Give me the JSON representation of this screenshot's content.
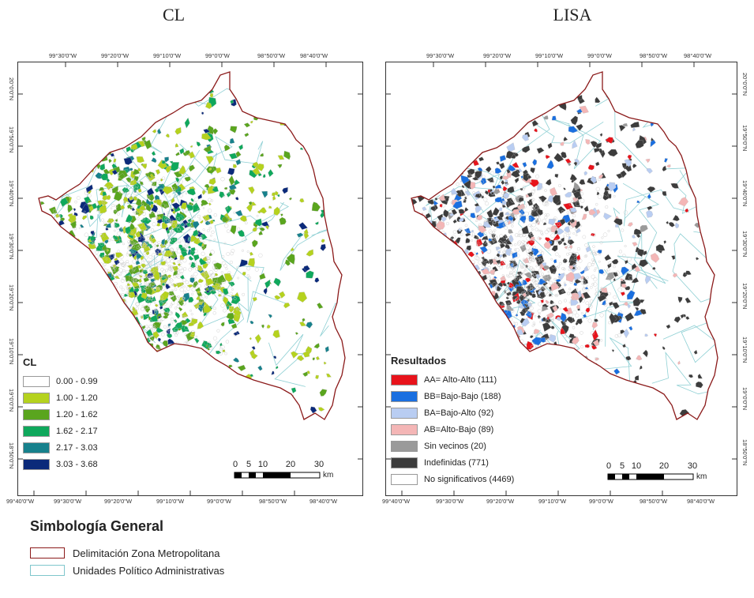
{
  "panels": [
    {
      "title": "CL",
      "top_ticks": [
        "99°30'0\"W",
        "99°20'0\"W",
        "99°10'0\"W",
        "99°0'0\"W",
        "98°50'0\"W",
        "98°40'0\"W"
      ],
      "bottom_ticks": [
        "99°40'0\"W",
        "99°30'0\"W",
        "99°20'0\"W",
        "99°10'0\"W",
        "99°0'0\"W",
        "98°50'0\"W",
        "98°40'0\"W"
      ],
      "left_ticks": [
        "20°0'0\"N",
        "19°50'0\"N",
        "19°40'0\"N",
        "19°30'0\"N",
        "19°20'0\"N",
        "19°10'0\"N",
        "19°0'0\"N",
        "18°50'0\"N"
      ],
      "legend": {
        "title": "CL",
        "items": [
          {
            "label": "0.00 - 0.99",
            "color": "#ffffff"
          },
          {
            "label": "1.00 - 1.20",
            "color": "#b5d21e"
          },
          {
            "label": "1.20 - 1.62",
            "color": "#5aa51e"
          },
          {
            "label": "1.62 - 2.17",
            "color": "#0fa85c"
          },
          {
            "label": "2.17 - 3.03",
            "color": "#17818c"
          },
          {
            "label": "3.03 - 3.68",
            "color": "#0b2a7a"
          }
        ]
      },
      "scale": {
        "labels": [
          "0",
          "5",
          "10",
          "20",
          "30"
        ],
        "unit": "km"
      }
    },
    {
      "title": "LISA",
      "top_ticks": [
        "99°30'0\"W",
        "99°20'0\"W",
        "99°10'0\"W",
        "99°0'0\"W",
        "98°50'0\"W",
        "98°40'0\"W"
      ],
      "bottom_ticks": [
        "99°40'0\"W",
        "99°30'0\"W",
        "99°20'0\"W",
        "99°10'0\"W",
        "99°0'0\"W",
        "98°50'0\"W",
        "98°40'0\"W"
      ],
      "right_ticks": [
        "20°0'0\"N",
        "19°50'0\"N",
        "19°40'0\"N",
        "19°30'0\"N",
        "19°20'0\"N",
        "19°10'0\"N",
        "19°0'0\"N",
        "18°50'0\"N"
      ],
      "legend": {
        "title": "Resultados",
        "items": [
          {
            "label": "AA= Alto-Alto (111)",
            "color": "#e8131b"
          },
          {
            "label": "BB=Bajo-Bajo (188)",
            "color": "#1a6fe0"
          },
          {
            "label": "BA=Bajo-Alto (92)",
            "color": "#b9cdf2"
          },
          {
            "label": "AB=Alto-Bajo (89)",
            "color": "#f4b6b6"
          },
          {
            "label": "Sin vecinos (20)",
            "color": "#9a9a9a"
          },
          {
            "label": "Indefinidas (771)",
            "color": "#3c3c3c"
          },
          {
            "label": "No significativos (4469)",
            "color": "#ffffff"
          }
        ]
      },
      "scale": {
        "labels": [
          "0",
          "5",
          "10",
          "20",
          "30"
        ],
        "unit": "km"
      }
    }
  ],
  "simbologia": {
    "title": "Simbología General",
    "items": [
      {
        "label": "Delimitación Zona Metropolitana",
        "color": "#8b1a1a"
      },
      {
        "label": "Unidades Político Administrativas",
        "color": "#7fc6cc"
      }
    ]
  }
}
